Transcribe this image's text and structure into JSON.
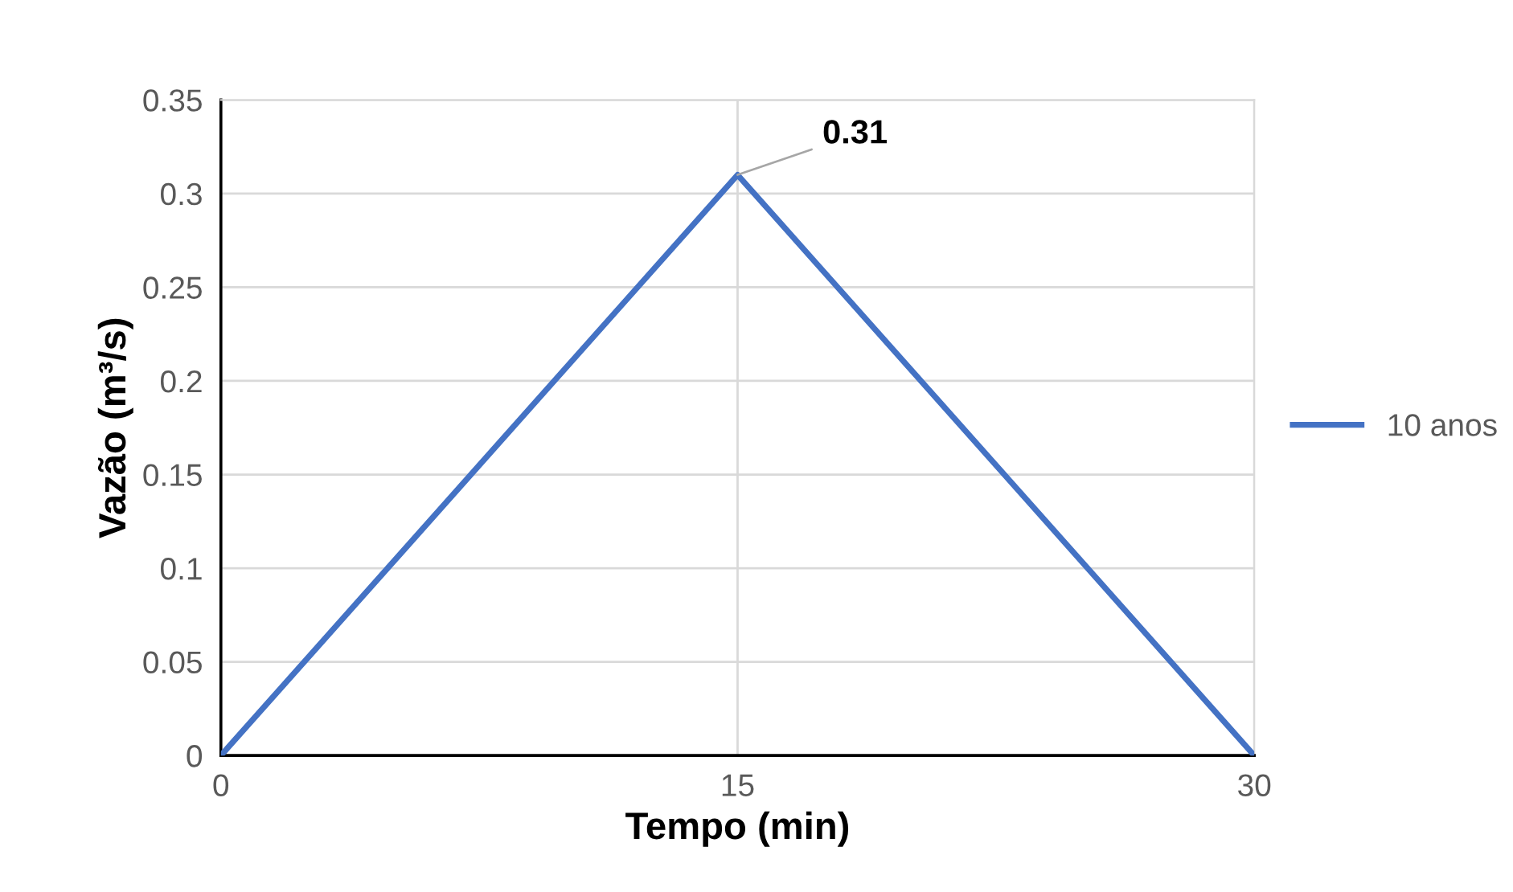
{
  "chart_data": {
    "type": "line",
    "xlabel": "Tempo (min)",
    "ylabel": "Vazão (m³/s)",
    "x": [
      0,
      15,
      30
    ],
    "series": [
      {
        "name": "10 anos",
        "color": "#4472c4",
        "values": [
          0,
          0.31,
          0
        ],
        "value_labels": [
          null,
          "0.31",
          null
        ]
      }
    ],
    "xlim": [
      0,
      30
    ],
    "xticks": [
      0,
      15,
      30
    ],
    "ylim": [
      0,
      0.35
    ],
    "yticks": [
      0,
      0.05,
      0.1,
      0.15,
      0.2,
      0.25,
      0.3,
      0.35
    ],
    "grid": true,
    "legend": "right",
    "marker": "none",
    "line_style": "solid"
  }
}
